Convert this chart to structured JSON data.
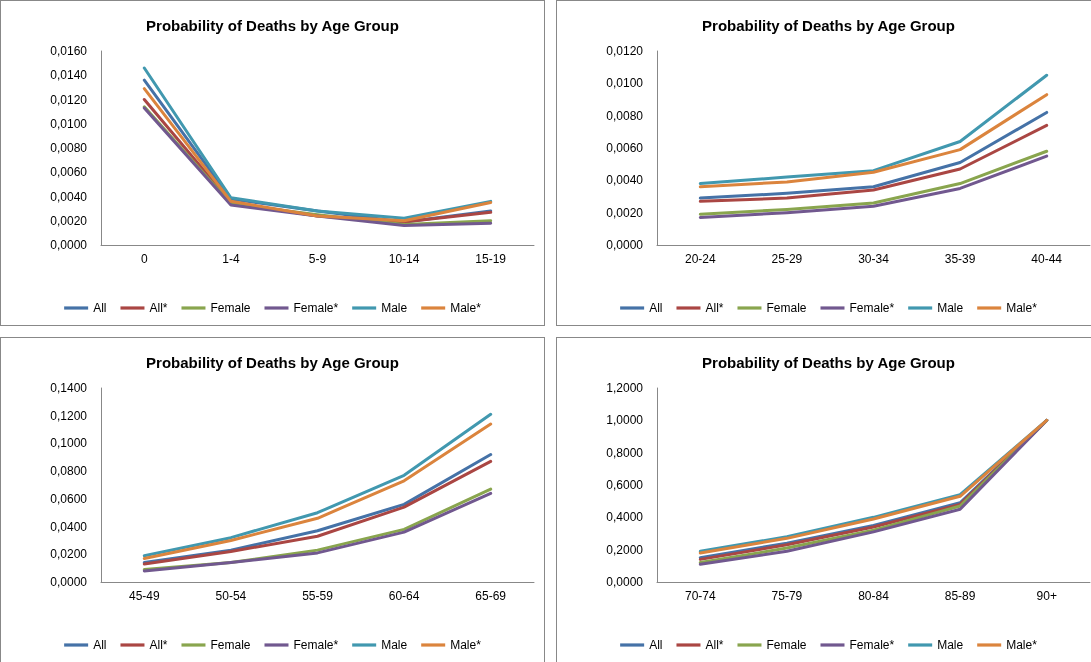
{
  "chart_data": [
    {
      "type": "line",
      "title": "Probability of Deaths by Age Group",
      "categories": [
        "0",
        "1-4",
        "5-9",
        "10-14",
        "15-19"
      ],
      "ylim": [
        0,
        0.016
      ],
      "yticks": [
        {
          "value": 0,
          "label": "0,0000"
        },
        {
          "value": 0.002,
          "label": "0,0020"
        },
        {
          "value": 0.004,
          "label": "0,0040"
        },
        {
          "value": 0.006,
          "label": "0,0060"
        },
        {
          "value": 0.008,
          "label": "0,0080"
        },
        {
          "value": 0.01,
          "label": "0,0100"
        },
        {
          "value": 0.012,
          "label": "0,0120"
        },
        {
          "value": 0.014,
          "label": "0,0140"
        },
        {
          "value": 0.016,
          "label": "0,0160"
        }
      ],
      "grid": false,
      "legend": "bottom",
      "marker": "none",
      "series": [
        {
          "name": "All",
          "color": "#4572a7",
          "values": [
            0.0136,
            0.0038,
            0.0028,
            0.0019,
            0.0028
          ]
        },
        {
          "name": "All*",
          "color": "#aa4643",
          "values": [
            0.012,
            0.0035,
            0.0024,
            0.0019,
            0.0027
          ]
        },
        {
          "name": "Female",
          "color": "#89a54e",
          "values": [
            0.0114,
            0.0034,
            0.0025,
            0.0017,
            0.002
          ]
        },
        {
          "name": "Female*",
          "color": "#71588f",
          "values": [
            0.0113,
            0.0033,
            0.0024,
            0.0016,
            0.0018
          ]
        },
        {
          "name": "Male",
          "color": "#4198af",
          "values": [
            0.0146,
            0.0039,
            0.0028,
            0.0022,
            0.0036
          ]
        },
        {
          "name": "Male*",
          "color": "#db843d",
          "values": [
            0.0129,
            0.0036,
            0.0024,
            0.002,
            0.0035
          ]
        }
      ]
    },
    {
      "type": "line",
      "title": "Probability of Deaths by Age Group",
      "categories": [
        "20-24",
        "25-29",
        "30-34",
        "35-39",
        "40-44"
      ],
      "ylim": [
        0,
        0.012
      ],
      "yticks": [
        {
          "value": 0,
          "label": "0,0000"
        },
        {
          "value": 0.002,
          "label": "0,0020"
        },
        {
          "value": 0.004,
          "label": "0,0040"
        },
        {
          "value": 0.006,
          "label": "0,0060"
        },
        {
          "value": 0.008,
          "label": "0,0080"
        },
        {
          "value": 0.01,
          "label": "0,0100"
        },
        {
          "value": 0.012,
          "label": "0,0120"
        }
      ],
      "grid": false,
      "legend": "bottom",
      "marker": "none",
      "series": [
        {
          "name": "All",
          "color": "#4572a7",
          "values": [
            0.0029,
            0.0032,
            0.0036,
            0.0051,
            0.0082
          ]
        },
        {
          "name": "All*",
          "color": "#aa4643",
          "values": [
            0.0027,
            0.0029,
            0.0034,
            0.0047,
            0.0074
          ]
        },
        {
          "name": "Female",
          "color": "#89a54e",
          "values": [
            0.0019,
            0.0022,
            0.0026,
            0.0038,
            0.0058
          ]
        },
        {
          "name": "Female*",
          "color": "#71588f",
          "values": [
            0.0017,
            0.002,
            0.0024,
            0.0035,
            0.0055
          ]
        },
        {
          "name": "Male",
          "color": "#4198af",
          "values": [
            0.0038,
            0.0042,
            0.0046,
            0.0064,
            0.0105
          ]
        },
        {
          "name": "Male*",
          "color": "#db843d",
          "values": [
            0.0036,
            0.0039,
            0.0045,
            0.0059,
            0.0093
          ]
        }
      ]
    },
    {
      "type": "line",
      "title": "Probability of Deaths by Age Group",
      "categories": [
        "45-49",
        "50-54",
        "55-59",
        "60-64",
        "65-69"
      ],
      "ylim": [
        0,
        0.14
      ],
      "yticks": [
        {
          "value": 0,
          "label": "0,0000"
        },
        {
          "value": 0.02,
          "label": "0,0200"
        },
        {
          "value": 0.04,
          "label": "0,0400"
        },
        {
          "value": 0.06,
          "label": "0,0600"
        },
        {
          "value": 0.08,
          "label": "0,0800"
        },
        {
          "value": 0.1,
          "label": "0,1000"
        },
        {
          "value": 0.12,
          "label": "0,1200"
        },
        {
          "value": 0.14,
          "label": "0,1400"
        }
      ],
      "grid": false,
      "legend": "bottom",
      "marker": "none",
      "series": [
        {
          "name": "All",
          "color": "#4572a7",
          "values": [
            0.014,
            0.023,
            0.037,
            0.056,
            0.092
          ]
        },
        {
          "name": "All*",
          "color": "#aa4643",
          "values": [
            0.013,
            0.022,
            0.033,
            0.054,
            0.087
          ]
        },
        {
          "name": "Female",
          "color": "#89a54e",
          "values": [
            0.009,
            0.014,
            0.023,
            0.038,
            0.067
          ]
        },
        {
          "name": "Female*",
          "color": "#71588f",
          "values": [
            0.008,
            0.014,
            0.021,
            0.036,
            0.064
          ]
        },
        {
          "name": "Male",
          "color": "#4198af",
          "values": [
            0.019,
            0.032,
            0.05,
            0.077,
            0.121
          ]
        },
        {
          "name": "Male*",
          "color": "#db843d",
          "values": [
            0.017,
            0.03,
            0.046,
            0.073,
            0.114
          ]
        }
      ]
    },
    {
      "type": "line",
      "title": "Probability of Deaths by Age Group",
      "categories": [
        "70-74",
        "75-79",
        "80-84",
        "85-89",
        "90+"
      ],
      "ylim": [
        0,
        1.2
      ],
      "yticks": [
        {
          "value": 0,
          "label": "0,0000"
        },
        {
          "value": 0.2,
          "label": "0,2000"
        },
        {
          "value": 0.4,
          "label": "0,4000"
        },
        {
          "value": 0.6,
          "label": "0,6000"
        },
        {
          "value": 0.8,
          "label": "0,8000"
        },
        {
          "value": 1,
          "label": "1,0000"
        },
        {
          "value": 1.2,
          "label": "1,2000"
        }
      ],
      "grid": false,
      "legend": "bottom",
      "marker": "none",
      "series": [
        {
          "name": "All",
          "color": "#4572a7",
          "values": [
            0.15,
            0.24,
            0.35,
            0.49,
            1.0
          ]
        },
        {
          "name": "All*",
          "color": "#aa4643",
          "values": [
            0.14,
            0.23,
            0.34,
            0.48,
            1.0
          ]
        },
        {
          "name": "Female",
          "color": "#89a54e",
          "values": [
            0.12,
            0.21,
            0.32,
            0.47,
            1.0
          ]
        },
        {
          "name": "Female*",
          "color": "#71588f",
          "values": [
            0.11,
            0.19,
            0.31,
            0.45,
            1.0
          ]
        },
        {
          "name": "Male",
          "color": "#4198af",
          "values": [
            0.19,
            0.28,
            0.4,
            0.54,
            1.0
          ]
        },
        {
          "name": "Male*",
          "color": "#db843d",
          "values": [
            0.18,
            0.27,
            0.39,
            0.53,
            1.0
          ]
        }
      ]
    }
  ]
}
